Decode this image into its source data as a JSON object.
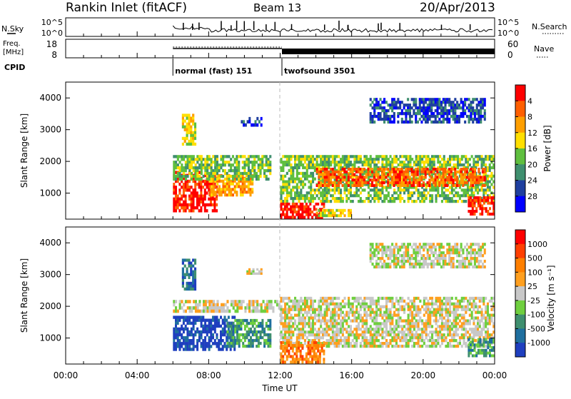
{
  "header": {
    "station": "Rankin Inlet (fitACF)",
    "beam": "Beam 13",
    "date": "20/Apr/2013"
  },
  "nsky_panel": {
    "left_label_1": "N.Sky",
    "left_label_2": "",
    "right_label": "N.Search",
    "left_ticks": [
      "10^5",
      "10^0"
    ],
    "right_ticks": [
      "10^5",
      "10^0"
    ]
  },
  "freq_panel": {
    "left_label_1": "Freq.",
    "left_label_2": "[MHz]",
    "right_label": "Nave",
    "left_ticks": [
      "18",
      "8"
    ],
    "right_ticks": [
      "60",
      "0"
    ]
  },
  "cpid": {
    "label": "CPID",
    "modes": [
      {
        "start_hour": 6.0,
        "name": "normal (fast) 151"
      },
      {
        "start_hour": 12.1,
        "name": "twofsound 3501"
      }
    ]
  },
  "x_axis": {
    "title": "Time UT",
    "tick_labels": [
      "00:00",
      "04:00",
      "08:00",
      "12:00",
      "16:00",
      "20:00",
      "00:00"
    ],
    "tick_hours": [
      0,
      4,
      8,
      12,
      16,
      20,
      24
    ]
  },
  "colors": {
    "power": [
      "#0000ff",
      "#1f3f9f",
      "#3f8f6f",
      "#5fbf3f",
      "#ffdf00",
      "#ff9f00",
      "#ff5f00",
      "#ff0000"
    ],
    "velocity": [
      "#1f3fbf",
      "#1f6f9f",
      "#3f8f6f",
      "#6fcf3f",
      "#c8c8c8",
      "#ff9f1f",
      "#ff7f00",
      "#ff3f00",
      "#ff0000"
    ]
  },
  "chart_data": [
    {
      "type": "heatmap",
      "name": "power",
      "ylabel": "Slant Range [km]",
      "ylim": [
        180,
        4500
      ],
      "y_ticks": [
        "1000",
        "2000",
        "3000",
        "4000"
      ],
      "y_tick_values": [
        1000,
        2000,
        3000,
        4000
      ],
      "xlim": [
        0,
        24
      ],
      "colorbar": {
        "label": "Power [dB]",
        "tick_labels": [
          "4",
          "8",
          "12",
          "16",
          "20",
          "24",
          "28"
        ],
        "levels": 8
      },
      "regions": [
        {
          "t0": 6.0,
          "t1": 8.5,
          "r0": 400,
          "r1": 1700,
          "level": 7
        },
        {
          "t0": 8.0,
          "t1": 10.5,
          "r0": 900,
          "r1": 1600,
          "level": 5
        },
        {
          "t0": 6.0,
          "t1": 11.5,
          "r0": 1400,
          "r1": 2200,
          "level": 3
        },
        {
          "t0": 6.5,
          "t1": 7.3,
          "r0": 2500,
          "r1": 3500,
          "level": 4
        },
        {
          "t0": 12.0,
          "t1": 24.0,
          "r0": 700,
          "r1": 2200,
          "level": 3
        },
        {
          "t0": 14.0,
          "t1": 23.5,
          "r0": 1200,
          "r1": 1800,
          "level": 6
        },
        {
          "t0": 12.0,
          "t1": 14.5,
          "r0": 200,
          "r1": 700,
          "level": 7
        },
        {
          "t0": 14.0,
          "t1": 16.0,
          "r0": 250,
          "r1": 500,
          "level": 4
        },
        {
          "t0": 22.5,
          "t1": 24.0,
          "r0": 300,
          "r1": 900,
          "level": 7
        },
        {
          "t0": 9.8,
          "t1": 11.0,
          "r0": 3100,
          "r1": 3400,
          "level": 1
        },
        {
          "t0": 17.0,
          "t1": 23.5,
          "r0": 3200,
          "r1": 4000,
          "level": 1
        }
      ]
    },
    {
      "type": "heatmap",
      "name": "velocity",
      "ylabel": "Slant Range [km]",
      "ylim": [
        180,
        4500
      ],
      "y_ticks": [
        "1000",
        "2000",
        "3000",
        "4000"
      ],
      "y_tick_values": [
        1000,
        2000,
        3000,
        4000
      ],
      "xlim": [
        0,
        24
      ],
      "colorbar": {
        "label": "Velocity [m s⁻¹]",
        "tick_labels": [
          "1000",
          "500",
          "100",
          "25",
          "-25",
          "-100",
          "-500",
          "-1000"
        ],
        "levels": 9
      },
      "regions": [
        {
          "t0": 6.0,
          "t1": 9.5,
          "r0": 600,
          "r1": 1700,
          "level": 0
        },
        {
          "t0": 9.0,
          "t1": 11.5,
          "r0": 700,
          "r1": 1600,
          "level": 2
        },
        {
          "t0": 6.0,
          "t1": 12.0,
          "r0": 1800,
          "r1": 2200,
          "level": 4
        },
        {
          "t0": 6.5,
          "t1": 7.3,
          "r0": 2500,
          "r1": 3500,
          "level": 1
        },
        {
          "t0": 12.0,
          "t1": 24.0,
          "r0": 700,
          "r1": 2300,
          "level": 4
        },
        {
          "t0": 12.0,
          "t1": 14.5,
          "r0": 200,
          "r1": 900,
          "level": 6
        },
        {
          "t0": 22.5,
          "t1": 24.0,
          "r0": 400,
          "r1": 1000,
          "level": 2
        },
        {
          "t0": 17.0,
          "t1": 23.5,
          "r0": 3200,
          "r1": 4000,
          "level": 4
        },
        {
          "t0": 10.0,
          "t1": 11.0,
          "r0": 3000,
          "r1": 3200,
          "level": 4
        }
      ]
    }
  ]
}
